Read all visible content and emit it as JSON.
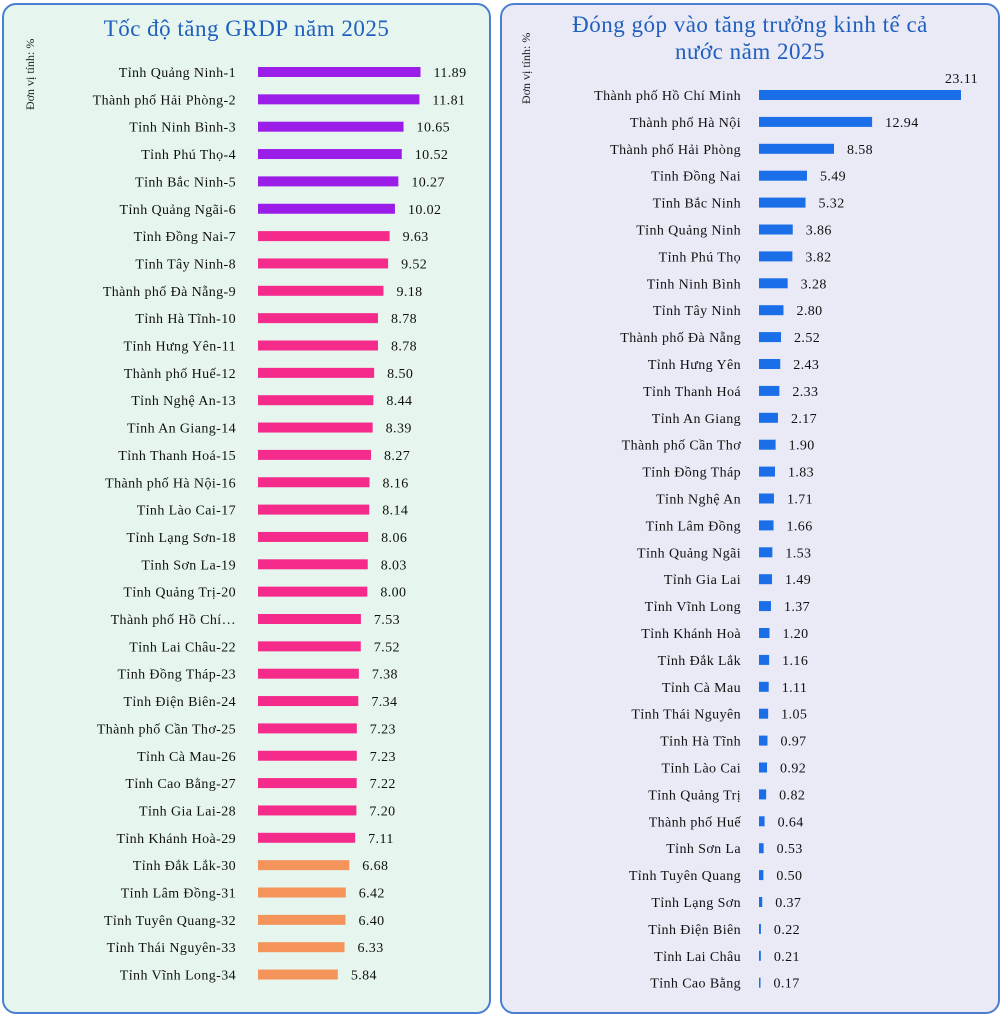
{
  "chart_data": [
    {
      "type": "bar",
      "orientation": "horizontal",
      "title": "Tốc độ tăng GRDP năm 2025",
      "ylabel": "Đơn vị tính: %",
      "xlim": [
        0,
        12
      ],
      "grid": false,
      "colors": {
        "rank_1_6": "#9b1de8",
        "rank_7_29": "#f52b8c",
        "rank_30_34": "#f4945a"
      },
      "categories": [
        "Tỉnh Quảng Ninh-1",
        "Thành phố Hải Phòng-2",
        "Tỉnh Ninh Bình-3",
        "Tỉnh Phú Thọ-4",
        "Tỉnh Bắc Ninh-5",
        "Tỉnh Quảng Ngãi-6",
        "Tỉnh Đồng Nai-7",
        "Tỉnh Tây Ninh-8",
        "Thành phố Đà Nẵng-9",
        "Tỉnh Hà Tĩnh-10",
        "Tỉnh Hưng Yên-11",
        "Thành phố Huế-12",
        "Tỉnh Nghệ An-13",
        "Tỉnh An Giang-14",
        "Tỉnh Thanh Hoá-15",
        "Thành phố Hà Nội-16",
        "Tỉnh Lào Cai-17",
        "Tỉnh Lạng Sơn-18",
        "Tỉnh Sơn La-19",
        "Tỉnh Quảng Trị-20",
        "Thành phố Hồ Chí…",
        "Tỉnh Lai Châu-22",
        "Tỉnh Đồng Tháp-23",
        "Tỉnh Điện Biên-24",
        "Thành phố Cần Thơ-25",
        "Tỉnh Cà Mau-26",
        "Tỉnh Cao Bằng-27",
        "Tỉnh Gia Lai-28",
        "Tỉnh Khánh Hoà-29",
        "Tỉnh Đắk Lắk-30",
        "Tỉnh Lâm Đồng-31",
        "Tỉnh Tuyên Quang-32",
        "Tỉnh Thái Nguyên-33",
        "Tỉnh Vĩnh Long-34"
      ],
      "values": [
        11.89,
        11.81,
        10.65,
        10.52,
        10.27,
        10.02,
        9.63,
        9.52,
        9.18,
        8.78,
        8.78,
        8.5,
        8.44,
        8.39,
        8.27,
        8.16,
        8.14,
        8.06,
        8.03,
        8.0,
        7.53,
        7.52,
        7.38,
        7.34,
        7.23,
        7.23,
        7.22,
        7.2,
        7.11,
        6.68,
        6.42,
        6.4,
        6.33,
        5.84
      ],
      "labels": [
        "11.89",
        "11.81",
        "10.65",
        "10.52",
        "10.27",
        "10.02",
        "9.63",
        "9.52",
        "9.18",
        "8.78",
        "8.78",
        "8.50",
        "8.44",
        "8.39",
        "8.27",
        "8.16",
        "8.14",
        "8.06",
        "8.03",
        "8.00",
        "7.53",
        "7.52",
        "7.38",
        "7.34",
        "7.23",
        "7.23",
        "7.22",
        "7.20",
        "7.11",
        "6.68",
        "6.42",
        "6.40",
        "6.33",
        "5.84"
      ]
    },
    {
      "type": "bar",
      "orientation": "horizontal",
      "title": "Đóng góp vào tăng trưởng kinh tế cả nước năm 2025",
      "ylabel": "Đơn vị tính: %",
      "xlim": [
        0,
        23.11
      ],
      "grid": false,
      "colors": {
        "bar": "#1a6fe8"
      },
      "categories": [
        "Thành phố Hồ Chí Minh",
        "Thành phố Hà Nội",
        "Thành phố Hải Phòng",
        "Tỉnh Đồng Nai",
        "Tỉnh Bắc Ninh",
        "Tỉnh Quảng Ninh",
        "Tỉnh Phú Thọ",
        "Tỉnh Ninh Bình",
        "Tỉnh Tây Ninh",
        "Thành phố Đà Nẵng",
        "Tỉnh Hưng Yên",
        "Tỉnh Thanh Hoá",
        "Tỉnh An Giang",
        "Thành phố Cần Thơ",
        "Tỉnh Đồng Tháp",
        "Tỉnh Nghệ An",
        "Tỉnh Lâm Đồng",
        "Tỉnh Quảng Ngãi",
        "Tỉnh Gia Lai",
        "Tỉnh Vĩnh Long",
        "Tỉnh Khánh Hoà",
        "Tỉnh Đắk Lắk",
        "Tỉnh Cà Mau",
        "Tỉnh Thái Nguyên",
        "Tỉnh Hà Tĩnh",
        "Tỉnh Lào Cai",
        "Tỉnh Quảng Trị",
        "Thành phố Huế",
        "Tỉnh Sơn La",
        "Tỉnh Tuyên Quang",
        "Tỉnh Lạng Sơn",
        "Tỉnh Điện Biên",
        "Tỉnh Lai Châu",
        "Tỉnh Cao Bằng"
      ],
      "values": [
        23.11,
        12.94,
        8.58,
        5.49,
        5.32,
        3.86,
        3.82,
        3.28,
        2.8,
        2.52,
        2.43,
        2.33,
        2.17,
        1.9,
        1.83,
        1.71,
        1.66,
        1.53,
        1.49,
        1.37,
        1.2,
        1.16,
        1.11,
        1.05,
        0.97,
        0.92,
        0.82,
        0.64,
        0.53,
        0.5,
        0.37,
        0.22,
        0.21,
        0.17
      ],
      "labels": [
        "23.11",
        "12.94",
        "8.58",
        "5.49",
        "5.32",
        "3.86",
        "3.82",
        "3.28",
        "2.80",
        "2.52",
        "2.43",
        "2.33",
        "2.17",
        "1.90",
        "1.83",
        "1.71",
        "1.66",
        "1.53",
        "1.49",
        "1.37",
        "1.20",
        "1.16",
        "1.11",
        "1.05",
        "0.97",
        "0.92",
        "0.82",
        "0.64",
        "0.53",
        "0.50",
        "0.37",
        "0.22",
        "0.21",
        "0.17"
      ]
    }
  ]
}
